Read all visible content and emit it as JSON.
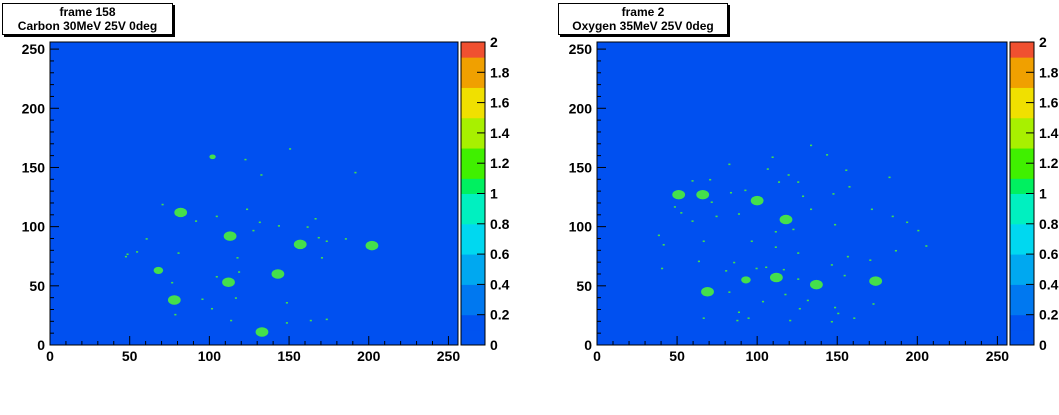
{
  "chart_data": [
    {
      "type": "heatmap",
      "title_lines": [
        "frame 158",
        "Carbon 30MeV 25V 0deg"
      ],
      "xlim": [
        0,
        256
      ],
      "ylim": [
        0,
        256
      ],
      "x_ticks": [
        "0",
        "50",
        "100",
        "150",
        "200",
        "250"
      ],
      "y_ticks": [
        "0",
        "50",
        "100",
        "150",
        "200",
        "250"
      ],
      "z_range": [
        0,
        2
      ],
      "z_ticks": [
        "0",
        "0.2",
        "0.4",
        "0.6",
        "0.8",
        "1",
        "1.2",
        "1.4",
        "1.6",
        "1.8",
        "2"
      ],
      "background_value": 0,
      "grid": false,
      "blobs": [
        {
          "x": 82,
          "y": 112,
          "r": 4,
          "value": 1
        },
        {
          "x": 113,
          "y": 92,
          "r": 4,
          "value": 1
        },
        {
          "x": 157,
          "y": 85,
          "r": 4,
          "value": 1
        },
        {
          "x": 202,
          "y": 84,
          "r": 4,
          "value": 1
        },
        {
          "x": 68,
          "y": 63,
          "r": 3,
          "value": 1
        },
        {
          "x": 143,
          "y": 60,
          "r": 4,
          "value": 1
        },
        {
          "x": 112,
          "y": 53,
          "r": 4,
          "value": 1
        },
        {
          "x": 78,
          "y": 38,
          "r": 4,
          "value": 1
        },
        {
          "x": 133,
          "y": 11,
          "r": 4,
          "value": 1
        },
        {
          "x": 102,
          "y": 159,
          "r": 2,
          "value": 1
        }
      ],
      "dots": [
        [
          122,
          156
        ],
        [
          132,
          143
        ],
        [
          191,
          145
        ],
        [
          70,
          118
        ],
        [
          123,
          114
        ],
        [
          104,
          108
        ],
        [
          91,
          104
        ],
        [
          131,
          103
        ],
        [
          166,
          106
        ],
        [
          143,
          100
        ],
        [
          161,
          99
        ],
        [
          127,
          96
        ],
        [
          185,
          89
        ],
        [
          168,
          90
        ],
        [
          173,
          87
        ],
        [
          48,
          76
        ],
        [
          80,
          77
        ],
        [
          117,
          73
        ],
        [
          170,
          73
        ],
        [
          104,
          57
        ],
        [
          118,
          61
        ],
        [
          76,
          52
        ],
        [
          116,
          39
        ],
        [
          148,
          35
        ],
        [
          101,
          30
        ],
        [
          113,
          20
        ],
        [
          148,
          18
        ],
        [
          163,
          20
        ],
        [
          150,
          165
        ],
        [
          78,
          25
        ],
        [
          47,
          74
        ],
        [
          60,
          89
        ],
        [
          54,
          78
        ],
        [
          173,
          21
        ],
        [
          95,
          38
        ]
      ]
    },
    {
      "type": "heatmap",
      "title_lines": [
        "frame 2",
        "Oxygen 35MeV 25V 0deg"
      ],
      "xlim": [
        0,
        256
      ],
      "ylim": [
        0,
        256
      ],
      "x_ticks": [
        "0",
        "50",
        "100",
        "150",
        "200",
        "250"
      ],
      "y_ticks": [
        "0",
        "50",
        "100",
        "150",
        "200",
        "250"
      ],
      "z_range": [
        0,
        2
      ],
      "z_ticks": [
        "0",
        "0.2",
        "0.4",
        "0.6",
        "0.8",
        "1",
        "1.2",
        "1.4",
        "1.6",
        "1.8",
        "2"
      ],
      "background_value": 0,
      "grid": false,
      "blobs": [
        {
          "x": 51,
          "y": 127,
          "r": 4,
          "value": 1
        },
        {
          "x": 66,
          "y": 127,
          "r": 4,
          "value": 1
        },
        {
          "x": 100,
          "y": 122,
          "r": 4,
          "value": 1
        },
        {
          "x": 118,
          "y": 106,
          "r": 4,
          "value": 1
        },
        {
          "x": 112,
          "y": 57,
          "r": 4,
          "value": 1
        },
        {
          "x": 174,
          "y": 54,
          "r": 4,
          "value": 1
        },
        {
          "x": 137,
          "y": 51,
          "r": 4,
          "value": 1
        },
        {
          "x": 93,
          "y": 55,
          "r": 3,
          "value": 1
        },
        {
          "x": 69,
          "y": 45,
          "r": 4,
          "value": 1
        }
      ],
      "dots": [
        [
          109,
          158
        ],
        [
          133,
          168
        ],
        [
          143,
          160
        ],
        [
          155,
          147
        ],
        [
          182,
          141
        ],
        [
          82,
          152
        ],
        [
          106,
          148
        ],
        [
          119,
          143
        ],
        [
          59,
          138
        ],
        [
          70,
          139
        ],
        [
          113,
          137
        ],
        [
          125,
          137
        ],
        [
          83,
          128
        ],
        [
          92,
          130
        ],
        [
          128,
          125
        ],
        [
          147,
          127
        ],
        [
          157,
          133
        ],
        [
          71,
          120
        ],
        [
          48,
          116
        ],
        [
          52,
          111
        ],
        [
          59,
          104
        ],
        [
          74,
          108
        ],
        [
          88,
          110
        ],
        [
          133,
          114
        ],
        [
          171,
          114
        ],
        [
          184,
          108
        ],
        [
          193,
          103
        ],
        [
          148,
          101
        ],
        [
          122,
          97
        ],
        [
          111,
          95
        ],
        [
          38,
          92
        ],
        [
          41,
          84
        ],
        [
          66,
          87
        ],
        [
          200,
          96
        ],
        [
          186,
          79
        ],
        [
          205,
          83
        ],
        [
          96,
          87
        ],
        [
          111,
          82
        ],
        [
          125,
          77
        ],
        [
          156,
          74
        ],
        [
          40,
          64
        ],
        [
          63,
          70
        ],
        [
          85,
          69
        ],
        [
          146,
          67
        ],
        [
          170,
          71
        ],
        [
          105,
          65
        ],
        [
          116,
          63
        ],
        [
          80,
          62
        ],
        [
          99,
          64
        ],
        [
          125,
          55
        ],
        [
          154,
          58
        ],
        [
          82,
          44
        ],
        [
          117,
          42
        ],
        [
          131,
          37
        ],
        [
          148,
          31
        ],
        [
          103,
          36
        ],
        [
          88,
          27
        ],
        [
          94,
          22
        ],
        [
          150,
          26
        ],
        [
          160,
          22
        ],
        [
          172,
          34
        ],
        [
          120,
          20
        ],
        [
          126,
          30
        ],
        [
          87,
          20
        ],
        [
          66,
          22
        ],
        [
          146,
          19
        ]
      ]
    }
  ]
}
